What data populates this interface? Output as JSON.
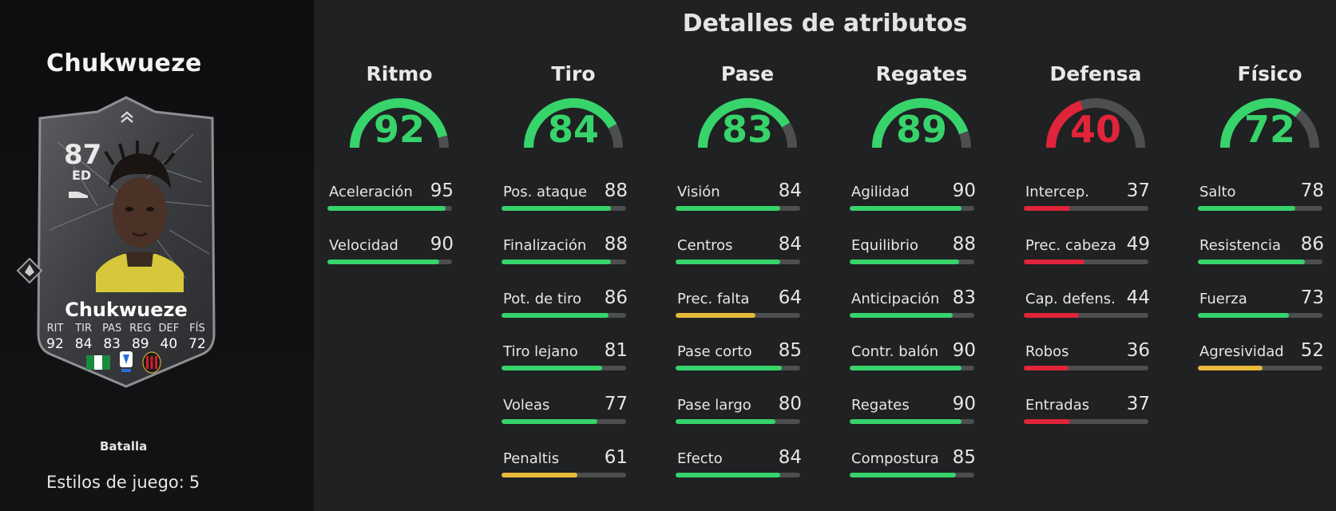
{
  "left": {
    "player_name": "Chukwueze",
    "card": {
      "rating": "87",
      "position": "ED",
      "name": "Chukwueze",
      "stats": [
        {
          "label": "RIT",
          "value": "92"
        },
        {
          "label": "TIR",
          "value": "84"
        },
        {
          "label": "PAS",
          "value": "83"
        },
        {
          "label": "REG",
          "value": "89"
        },
        {
          "label": "DEF",
          "value": "40"
        },
        {
          "label": "FÍS",
          "value": "72"
        }
      ],
      "nation": "nigeria-flag",
      "league": "serie-a-badge",
      "club": "ac-milan-crest"
    },
    "chemistry_style": "Batalla",
    "playstyles_label": "Estilos de juego:",
    "playstyles_count": "5"
  },
  "main": {
    "title": "Detalles de atributos",
    "colors": {
      "green": "#37d36b",
      "yellow": "#e8b93a",
      "red": "#e0243a",
      "track": "#4c4e50"
    },
    "categories": [
      {
        "name": "Ritmo",
        "value": 92,
        "color": "green",
        "attributes": [
          {
            "label": "Aceleración",
            "value": 95,
            "color": "green"
          },
          {
            "label": "Velocidad",
            "value": 90,
            "color": "green"
          }
        ]
      },
      {
        "name": "Tiro",
        "value": 84,
        "color": "green",
        "attributes": [
          {
            "label": "Pos. ataque",
            "value": 88,
            "color": "green"
          },
          {
            "label": "Finalización",
            "value": 88,
            "color": "green"
          },
          {
            "label": "Pot. de tiro",
            "value": 86,
            "color": "green"
          },
          {
            "label": "Tiro lejano",
            "value": 81,
            "color": "green"
          },
          {
            "label": "Voleas",
            "value": 77,
            "color": "green"
          },
          {
            "label": "Penaltis",
            "value": 61,
            "color": "yellow"
          }
        ]
      },
      {
        "name": "Pase",
        "value": 83,
        "color": "green",
        "attributes": [
          {
            "label": "Visión",
            "value": 84,
            "color": "green"
          },
          {
            "label": "Centros",
            "value": 84,
            "color": "green"
          },
          {
            "label": "Prec. falta",
            "value": 64,
            "color": "yellow"
          },
          {
            "label": "Pase corto",
            "value": 85,
            "color": "green"
          },
          {
            "label": "Pase largo",
            "value": 80,
            "color": "green"
          },
          {
            "label": "Efecto",
            "value": 84,
            "color": "green"
          }
        ]
      },
      {
        "name": "Regates",
        "value": 89,
        "color": "green",
        "attributes": [
          {
            "label": "Agilidad",
            "value": 90,
            "color": "green"
          },
          {
            "label": "Equilibrio",
            "value": 88,
            "color": "green"
          },
          {
            "label": "Anticipación",
            "value": 83,
            "color": "green"
          },
          {
            "label": "Contr. balón",
            "value": 90,
            "color": "green"
          },
          {
            "label": "Regates",
            "value": 90,
            "color": "green"
          },
          {
            "label": "Compostura",
            "value": 85,
            "color": "green"
          }
        ]
      },
      {
        "name": "Defensa",
        "value": 40,
        "color": "red",
        "attributes": [
          {
            "label": "Intercep.",
            "value": 37,
            "color": "red"
          },
          {
            "label": "Prec. cabeza",
            "value": 49,
            "color": "red"
          },
          {
            "label": "Cap. defens.",
            "value": 44,
            "color": "red"
          },
          {
            "label": "Robos",
            "value": 36,
            "color": "red"
          },
          {
            "label": "Entradas",
            "value": 37,
            "color": "red"
          }
        ]
      },
      {
        "name": "Físico",
        "value": 72,
        "color": "green",
        "attributes": [
          {
            "label": "Salto",
            "value": 78,
            "color": "green"
          },
          {
            "label": "Resistencia",
            "value": 86,
            "color": "green"
          },
          {
            "label": "Fuerza",
            "value": 73,
            "color": "green"
          },
          {
            "label": "Agresividad",
            "value": 52,
            "color": "yellow"
          }
        ]
      }
    ]
  }
}
